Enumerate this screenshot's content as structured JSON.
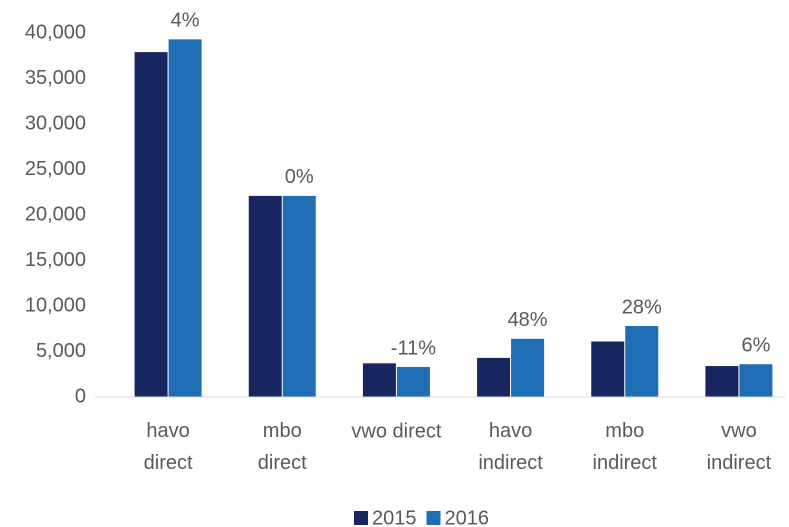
{
  "chart_data": {
    "type": "bar",
    "categories": [
      "havo\ndirect",
      "mbo\ndirect",
      "vwo direct",
      "havo\nindirect",
      "mbo\nindirect",
      "vwo\nindirect"
    ],
    "series": [
      {
        "name": "2015",
        "color": "#172660",
        "values": [
          37900,
          22100,
          3700,
          4300,
          6100,
          3400
        ]
      },
      {
        "name": "2016",
        "color": "#1f6db4",
        "values": [
          39300,
          22100,
          3300,
          6400,
          7800,
          3600
        ]
      }
    ],
    "annotations": [
      "4%",
      "0%",
      "-11%",
      "48%",
      "28%",
      "6%"
    ],
    "ylim": [
      0,
      40000
    ],
    "yticks": [
      0,
      {
        "value": 5000,
        "label": "5,000"
      },
      {
        "value": 10000,
        "label": "10,000"
      },
      {
        "value": 15000,
        "label": "15,000"
      },
      {
        "value": 20000,
        "label": "20,000"
      },
      {
        "value": 25000,
        "label": "25,000"
      },
      {
        "value": 30000,
        "label": "30,000"
      },
      {
        "value": 35000,
        "label": "35,000"
      },
      {
        "value": 40000,
        "label": "40,000"
      }
    ],
    "grid": false,
    "legend": "bottom"
  }
}
